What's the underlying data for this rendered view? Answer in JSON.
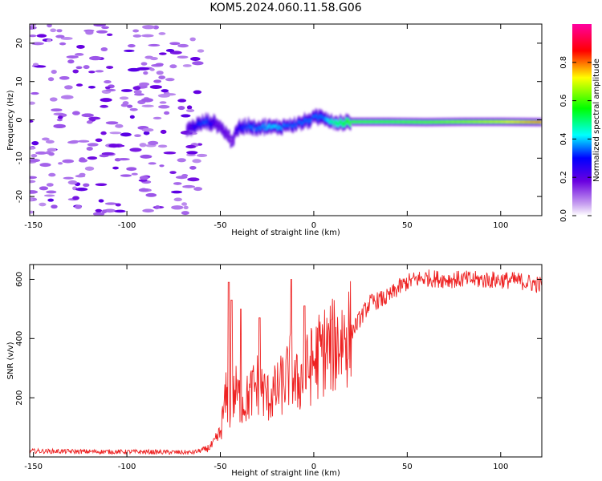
{
  "title": "KOM5.2024.060.11.58.G06",
  "chart_data": [
    {
      "type": "heatmap",
      "xlabel": "Height of straight line (km)",
      "ylabel": "Frequency (Hz)",
      "xlim": [
        -152,
        122
      ],
      "ylim": [
        -25,
        25
      ],
      "xticks": [
        -150,
        -100,
        -50,
        0,
        50,
        100
      ],
      "yticks": [
        -20,
        -10,
        0,
        10,
        20
      ],
      "colorbar": {
        "label": "Normalized spectral amplitude",
        "range": [
          0,
          1
        ],
        "ticks": [
          0.0,
          0.2,
          0.4,
          0.6,
          0.8
        ],
        "colors": [
          "#ffffff",
          "#c8a0f0",
          "#6a00e0",
          "#0000ff",
          "#00ffff",
          "#00ff00",
          "#ffff00",
          "#ff0000",
          "#ff00a0"
        ]
      },
      "noise_region": {
        "x": [
          -152,
          -65
        ],
        "y": [
          -25,
          25
        ],
        "amplitude": 0.12
      },
      "trace": {
        "x": [
          -68,
          -63,
          -58,
          -52,
          -47,
          -44,
          -40,
          -35,
          -30,
          -25,
          -20,
          -15,
          -10,
          -5,
          0,
          5,
          10,
          15,
          20,
          40,
          60,
          80,
          100,
          122
        ],
        "freq": [
          -2.5,
          -1.5,
          -0.5,
          -1,
          -3.5,
          -5.5,
          -2,
          -1.5,
          -2,
          -1.8,
          -2,
          -1.5,
          -1.2,
          -0.5,
          0.5,
          0.8,
          -0.5,
          -0.8,
          -0.5,
          -0.5,
          -0.6,
          -0.5,
          -0.5,
          -0.6
        ],
        "amplitude": [
          0.2,
          0.3,
          0.35,
          0.2,
          0.2,
          0.15,
          0.3,
          0.35,
          0.35,
          0.4,
          0.4,
          0.35,
          0.35,
          0.35,
          0.35,
          0.35,
          0.5,
          0.55,
          0.6,
          0.6,
          0.62,
          0.65,
          0.7,
          0.8
        ]
      }
    },
    {
      "type": "line",
      "xlabel": "Height of straight line (km)",
      "ylabel": "SNR (v/v)",
      "xlim": [
        -152,
        122
      ],
      "ylim": [
        0,
        650
      ],
      "xticks": [
        -150,
        -100,
        -50,
        0,
        50,
        100
      ],
      "yticks": [
        200,
        400,
        600
      ],
      "color": "#ee2222",
      "series": [
        {
          "x": [
            -152,
            -120,
            -90,
            -65,
            -58,
            -54,
            -50,
            -47,
            -45,
            -42,
            -38,
            -35,
            -30,
            -25,
            -20,
            -15,
            -12,
            -10,
            -5,
            0,
            5,
            10,
            15,
            20,
            25,
            30,
            35,
            40,
            45,
            50,
            55,
            60,
            70,
            80,
            90,
            100,
            110,
            122
          ],
          "values": [
            20,
            18,
            17,
            15,
            25,
            40,
            80,
            200,
            150,
            220,
            180,
            200,
            250,
            200,
            220,
            260,
            300,
            240,
            280,
            320,
            360,
            370,
            400,
            420,
            470,
            520,
            530,
            540,
            570,
            590,
            600,
            605,
            600,
            600,
            598,
            598,
            595,
            580
          ],
          "spikes": [
            {
              "x": -45.5,
              "y": 590
            },
            {
              "x": -44,
              "y": 530
            },
            {
              "x": -39,
              "y": 500
            },
            {
              "x": -29,
              "y": 470
            },
            {
              "x": -12,
              "y": 600
            },
            {
              "x": -5,
              "y": 510
            }
          ]
        }
      ]
    }
  ]
}
